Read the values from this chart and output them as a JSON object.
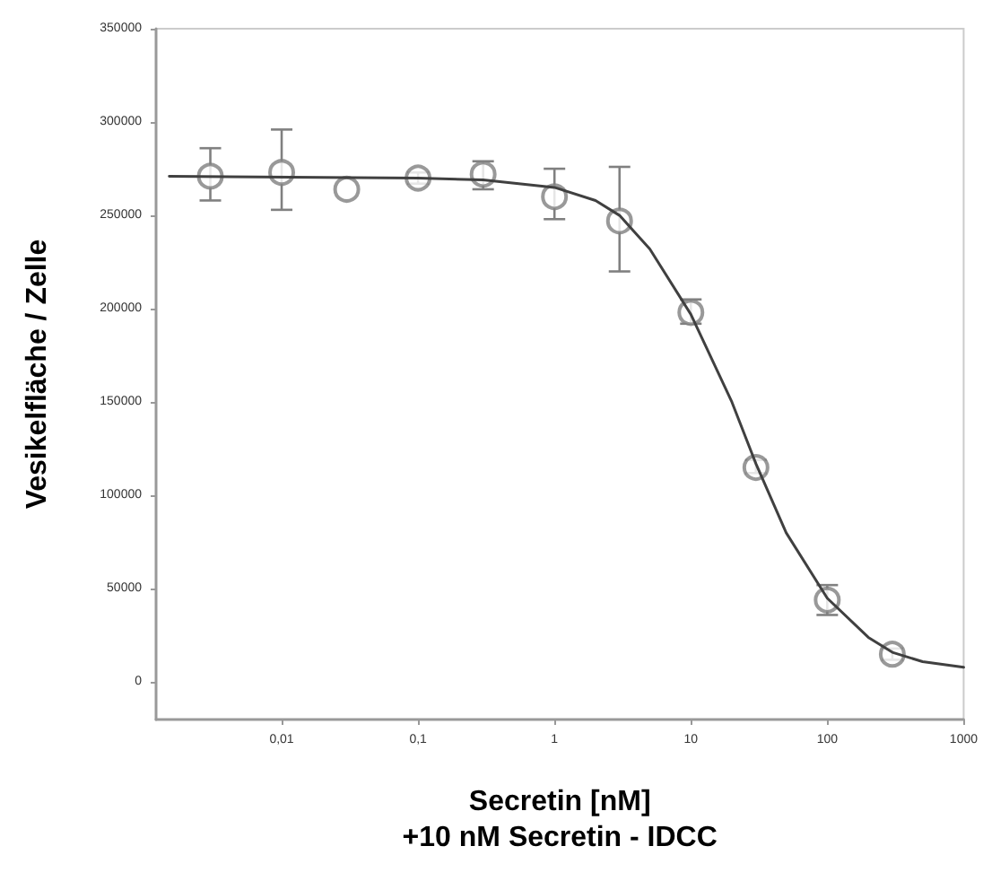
{
  "chart_data": {
    "type": "scatter",
    "xlabel": "Secretin [nM]\n+10 nM Secretin - IDCC",
    "ylabel": "Vesikelfläche / Zelle",
    "log": "x",
    "grid": false,
    "xlim": [
      0.0012,
      1000
    ],
    "xticks": [
      {
        "value": 0.01,
        "label": "0,01"
      },
      {
        "value": 0.1,
        "label": "0,1"
      },
      1,
      10,
      100,
      1000
    ],
    "ylim": [
      -20000,
      350000
    ],
    "yticks": [
      0,
      50000,
      100000,
      150000,
      200000,
      250000,
      300000,
      350000
    ],
    "series": [
      {
        "type": "scatter",
        "color": "#808080",
        "marker": "circle",
        "x": [
          0.003,
          0.01,
          0.03,
          0.1,
          0.3,
          1,
          3,
          10,
          30,
          100,
          300
        ],
        "values": [
          271000,
          273000,
          264000,
          270000,
          272000,
          260000,
          247000,
          198000,
          115000,
          44000,
          15000
        ],
        "errors": [
          [
            258000,
            286000
          ],
          [
            253000,
            296000
          ],
          null,
          [
            267000,
            273000
          ],
          [
            264000,
            279000
          ],
          [
            248000,
            275000
          ],
          [
            220000,
            276000
          ],
          [
            192000,
            205000
          ],
          [
            112000,
            119000
          ],
          [
            36000,
            52000
          ],
          [
            12000,
            18000
          ]
        ]
      },
      {
        "type": "line",
        "color": "#404040",
        "marker": "none",
        "line_style": "solid",
        "x": [
          0.0015,
          0.1,
          0.3,
          1,
          2,
          3,
          5,
          10,
          20,
          30,
          50,
          100,
          200,
          300,
          500,
          1000
        ],
        "values": [
          271000,
          270000,
          269000,
          265000,
          258000,
          250000,
          232000,
          197000,
          150000,
          117000,
          80000,
          45000,
          24000,
          16000,
          11000,
          8000
        ]
      }
    ]
  }
}
